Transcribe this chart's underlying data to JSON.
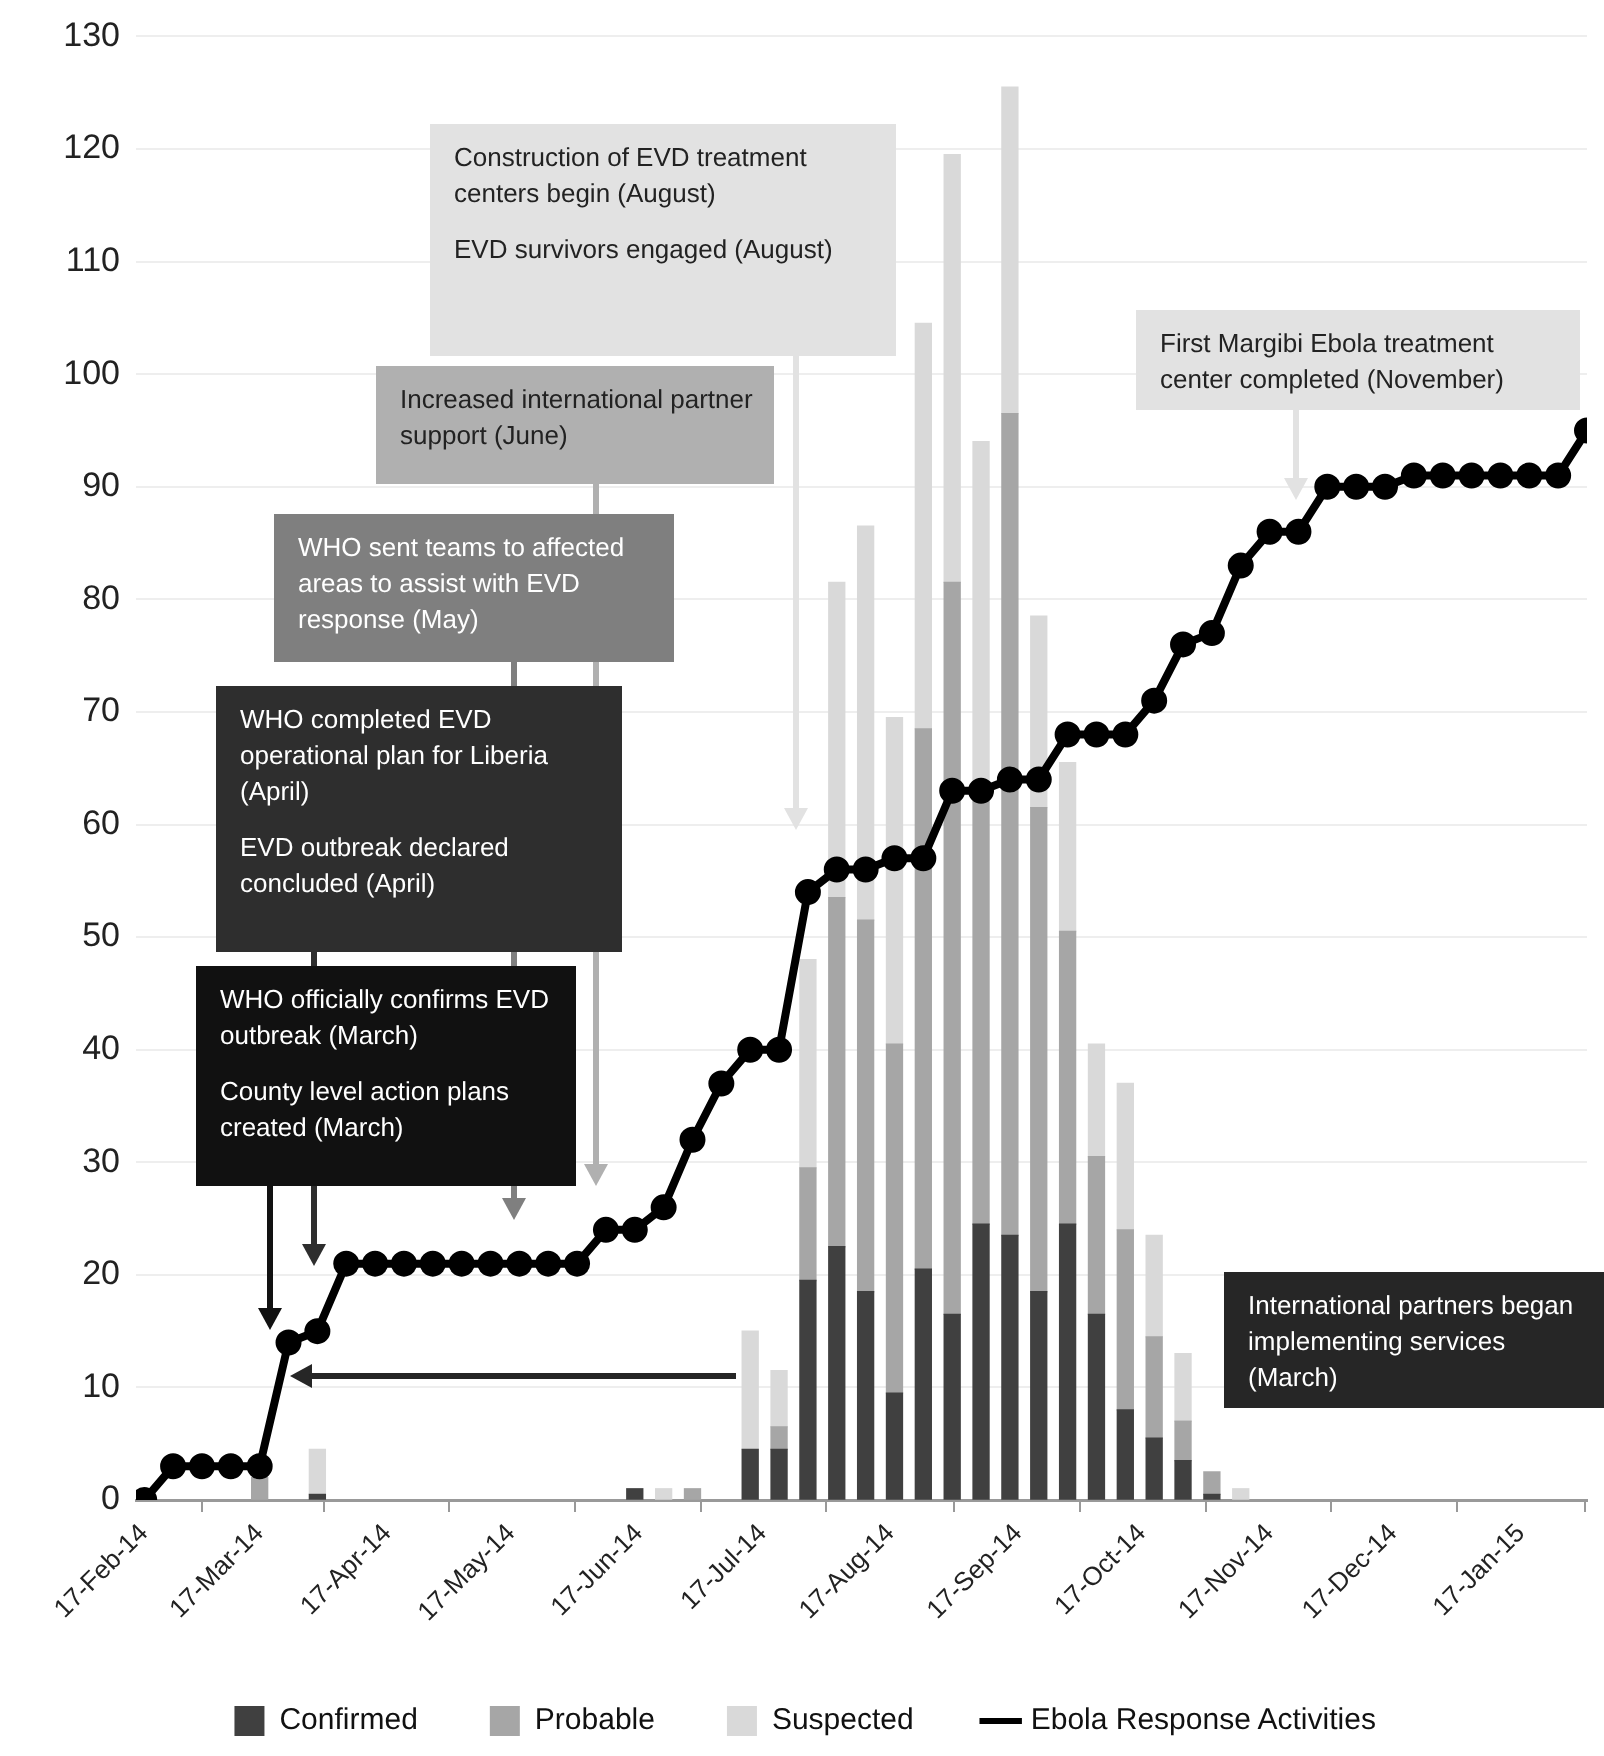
{
  "chart_data": {
    "type": "bar",
    "stacked": true,
    "x": [
      "2014-02-17",
      "2014-02-24",
      "2014-03-03",
      "2014-03-10",
      "2014-03-17",
      "2014-03-24",
      "2014-03-31",
      "2014-04-07",
      "2014-04-14",
      "2014-04-21",
      "2014-04-28",
      "2014-05-05",
      "2014-05-12",
      "2014-05-19",
      "2014-05-26",
      "2014-06-02",
      "2014-06-09",
      "2014-06-16",
      "2014-06-23",
      "2014-06-30",
      "2014-07-07",
      "2014-07-14",
      "2014-07-21",
      "2014-07-28",
      "2014-08-04",
      "2014-08-11",
      "2014-08-18",
      "2014-08-25",
      "2014-09-01",
      "2014-09-08",
      "2014-09-15",
      "2014-09-22",
      "2014-09-29",
      "2014-10-06",
      "2014-10-13",
      "2014-10-20",
      "2014-10-27",
      "2014-11-03",
      "2014-11-10",
      "2014-11-17",
      "2014-11-24",
      "2014-12-01",
      "2014-12-08",
      "2014-12-15",
      "2014-12-22",
      "2014-12-29",
      "2015-01-05",
      "2015-01-12",
      "2015-01-19",
      "2015-01-26",
      "2015-02-02"
    ],
    "series": [
      {
        "name": "Confirmed",
        "color": "#404040",
        "values": [
          null,
          null,
          null,
          null,
          null,
          null,
          0.5,
          null,
          null,
          null,
          null,
          null,
          null,
          null,
          null,
          null,
          null,
          1,
          null,
          null,
          null,
          4.5,
          4.5,
          19.5,
          22.5,
          18.5,
          9.5,
          20.5,
          16.5,
          24.5,
          23.5,
          18.5,
          24.5,
          16.5,
          8,
          5.5,
          3.5,
          0.5,
          null,
          null,
          null,
          null,
          null,
          null,
          null,
          null,
          null,
          null,
          null,
          null,
          null
        ]
      },
      {
        "name": "Probable",
        "color": "#a6a6a6",
        "values": [
          null,
          null,
          null,
          null,
          2,
          null,
          null,
          null,
          null,
          null,
          null,
          null,
          null,
          null,
          null,
          null,
          null,
          null,
          null,
          1,
          null,
          null,
          2,
          10,
          31,
          33,
          31,
          48,
          65,
          37.5,
          73,
          43,
          26,
          14,
          16,
          9,
          3.5,
          2,
          null,
          null,
          null,
          null,
          null,
          null,
          null,
          null,
          null,
          null,
          null,
          null,
          null
        ]
      },
      {
        "name": "Suspected",
        "color": "#d9d9d9",
        "values": [
          null,
          null,
          null,
          null,
          null,
          null,
          4,
          null,
          null,
          null,
          null,
          null,
          null,
          null,
          null,
          null,
          null,
          null,
          1,
          null,
          null,
          10.5,
          5,
          18.5,
          28,
          35,
          29,
          36,
          38,
          32,
          29,
          17,
          15,
          10,
          13,
          9,
          6,
          null,
          1,
          null,
          null,
          null,
          null,
          null,
          null,
          null,
          null,
          null,
          null,
          null,
          null
        ]
      },
      {
        "name": "Ebola Response Activities",
        "type": "line",
        "color": "#000000",
        "values": [
          0,
          3,
          3,
          3,
          3,
          14,
          15,
          21,
          21,
          21,
          21,
          21,
          21,
          21,
          21,
          21,
          24,
          24,
          26,
          32,
          37,
          40,
          40,
          54,
          56,
          56,
          57,
          57,
          63,
          63,
          64,
          64,
          68,
          68,
          68,
          71,
          76,
          77,
          83,
          86,
          86,
          90,
          90,
          90,
          91,
          91,
          91,
          91,
          91,
          91,
          95
        ]
      }
    ],
    "xlim": [
      "2014-02-15",
      "2015-02-02"
    ],
    "xticks": [
      {
        "value": "2014-02-17",
        "label": "17-Feb-14"
      },
      {
        "value": "2014-03-17",
        "label": "17-Mar-14"
      },
      {
        "value": "2014-04-17",
        "label": "17-Apr-14"
      },
      {
        "value": "2014-05-17",
        "label": "17-May-14"
      },
      {
        "value": "2014-06-17",
        "label": "17-Jun-14"
      },
      {
        "value": "2014-07-17",
        "label": "17-Jul-14"
      },
      {
        "value": "2014-08-17",
        "label": "17-Aug-14"
      },
      {
        "value": "2014-09-17",
        "label": "17-Sep-14"
      },
      {
        "value": "2014-10-17",
        "label": "17-Oct-14"
      },
      {
        "value": "2014-11-17",
        "label": "17-Nov-14"
      },
      {
        "value": "2014-12-17",
        "label": "17-Dec-14"
      },
      {
        "value": "2015-01-17",
        "label": "17-Jan-15"
      }
    ],
    "ylim": [
      0,
      130
    ],
    "yticks": [
      0,
      10,
      20,
      30,
      40,
      50,
      60,
      70,
      80,
      90,
      100,
      110,
      120,
      130
    ],
    "grid": "y",
    "legend": "bottom",
    "marker": "circle",
    "annotations": [
      "Construction of EVD treatment centers begin (August)\nEVD survivors engaged (August)",
      "First Margibi Ebola treatment center completed (November)",
      "Increased international partner support (June)",
      "WHO sent teams to affected areas to assist with EVD response (May)",
      "WHO completed EVD operational plan for Liberia (April)\nEVD outbreak declared concluded (April)",
      "WHO officially confirms EVD outbreak (March)\nCounty level action plans created (March)",
      "International partners began implementing services (March)"
    ]
  }
}
